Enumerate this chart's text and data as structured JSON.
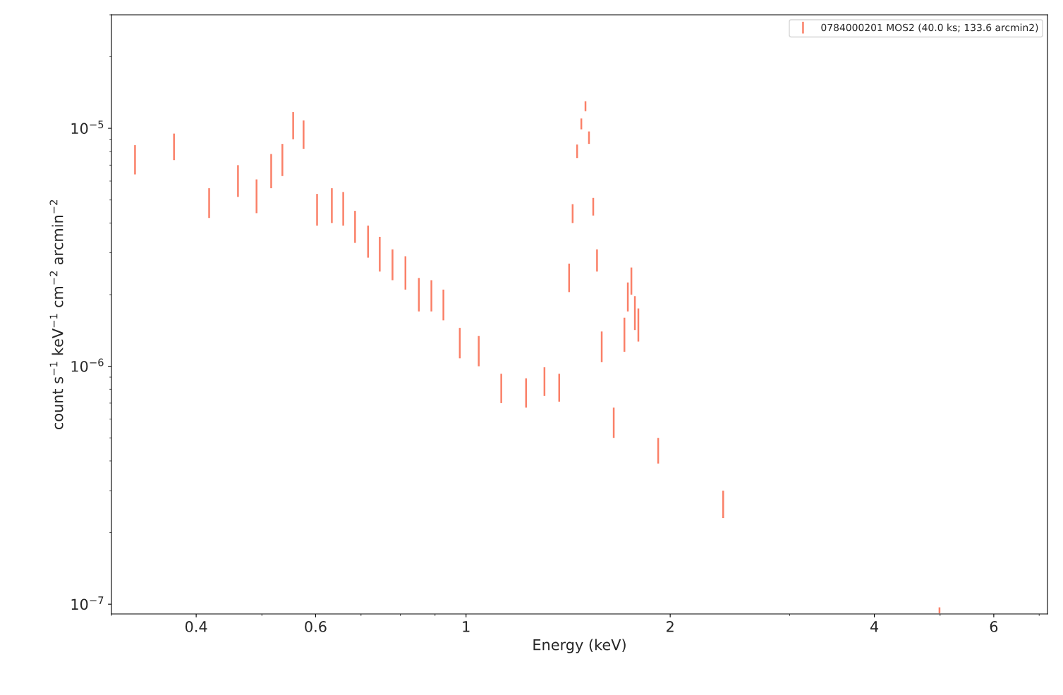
{
  "chart_data": {
    "type": "bar",
    "xlabel": "Energy (keV)",
    "ylabel": "count s$^{−1}$ keV$^{−1}$ cm$^{−2}$ arcmin$^{−2}$",
    "log": "xy",
    "legend": "top right",
    "grid": false,
    "xlim": [
      0.3,
      7.2
    ],
    "ylim": [
      9.1e-08,
      3e-05
    ],
    "xticks": [
      0.4,
      0.6,
      1,
      2,
      4,
      6
    ],
    "yticks": [
      {
        "value": 1e-07,
        "label": "10$^{−7}$"
      },
      {
        "value": 1e-06,
        "label": "10$^{−6}$"
      },
      {
        "value": 1e-05,
        "label": "10$^{−5}$"
      }
    ],
    "series": [
      {
        "name": "0784000201 MOS2 (40.0 ks; 133.6 arcmin2)",
        "color": "#fa8068",
        "x": [
          0.325,
          0.371,
          0.418,
          0.461,
          0.491,
          0.516,
          0.536,
          0.556,
          0.576,
          0.603,
          0.634,
          0.659,
          0.686,
          0.717,
          0.746,
          0.779,
          0.814,
          0.852,
          0.889,
          0.926,
          0.979,
          1.044,
          1.127,
          1.226,
          1.305,
          1.372,
          1.419,
          1.436,
          1.458,
          1.479,
          1.5,
          1.518,
          1.54,
          1.56,
          1.585,
          1.651,
          1.712,
          1.732,
          1.753,
          1.774,
          1.795,
          1.92,
          2.394,
          4.99
        ],
        "base": [
          6.4e-06,
          7.35e-06,
          4.2e-06,
          5.15e-06,
          4.4e-06,
          5.6e-06,
          6.3e-06,
          9e-06,
          8.2e-06,
          3.9e-06,
          4e-06,
          3.9e-06,
          3.3e-06,
          2.86e-06,
          2.5e-06,
          2.3e-06,
          2.1e-06,
          1.7e-06,
          1.7e-06,
          1.56e-06,
          1.08e-06,
          1e-06,
          7e-07,
          6.7e-07,
          7.5e-07,
          7.1e-07,
          2.05e-06,
          4e-06,
          7.5e-06,
          9.9e-06,
          1.18e-05,
          8.6e-06,
          4.3e-06,
          2.5e-06,
          1.04e-06,
          5e-07,
          1.15e-06,
          1.7e-06,
          2e-06,
          1.42e-06,
          1.27e-06,
          3.9e-07,
          2.3e-07,
          9.15e-08
        ],
        "values": [
          2.1e-06,
          2.15e-06,
          1.4e-06,
          1.85e-06,
          1.7e-06,
          2.2e-06,
          2.3e-06,
          2.7e-06,
          2.6e-06,
          1.4e-06,
          1.6e-06,
          1.5e-06,
          1.2e-06,
          1.04e-06,
          1e-06,
          8e-07,
          8e-07,
          6.5e-07,
          6e-07,
          5.4e-07,
          3.7e-07,
          3.4e-07,
          2.3e-07,
          2.2e-07,
          2.4e-07,
          2.2e-07,
          6.5e-07,
          8e-07,
          1.05e-06,
          1.1e-06,
          1.2e-06,
          1.1e-06,
          8e-07,
          6e-07,
          3.6e-07,
          1.7e-07,
          4.5e-07,
          5.5e-07,
          6e-07,
          5.5e-07,
          4.8e-07,
          1.1e-07,
          7e-08,
          5.5e-09
        ]
      }
    ]
  }
}
